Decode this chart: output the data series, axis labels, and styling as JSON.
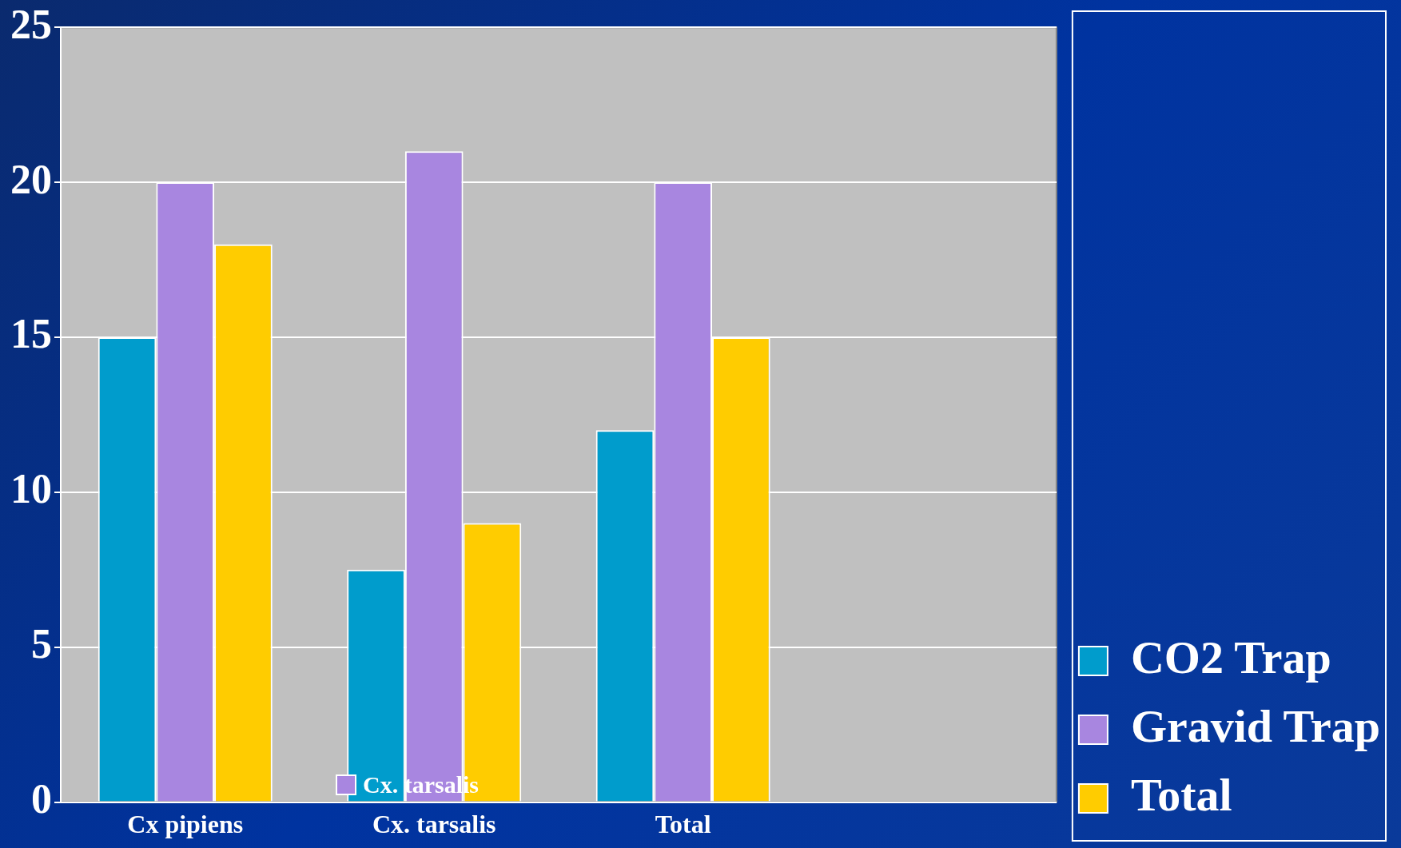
{
  "chart_data": {
    "type": "bar",
    "categories": [
      "Cx pipiens",
      "Cx. tarsalis",
      "Total",
      null
    ],
    "series": [
      {
        "name": "CO2 Trap",
        "color": "#009ccc",
        "values": [
          15,
          7.5,
          12,
          null
        ]
      },
      {
        "name": "Gravid Trap",
        "color": "#a886e0",
        "values": [
          20,
          21,
          20,
          null
        ]
      },
      {
        "name": "Total",
        "color": "#ffcc00",
        "values": [
          18,
          9,
          15,
          null
        ]
      }
    ],
    "ylim": [
      0,
      25
    ],
    "yticks": [
      0,
      5,
      10,
      15,
      20,
      25
    ],
    "grid": "y",
    "legend": "bottom right",
    "annotations": [
      "Cx. tarsalis"
    ]
  }
}
